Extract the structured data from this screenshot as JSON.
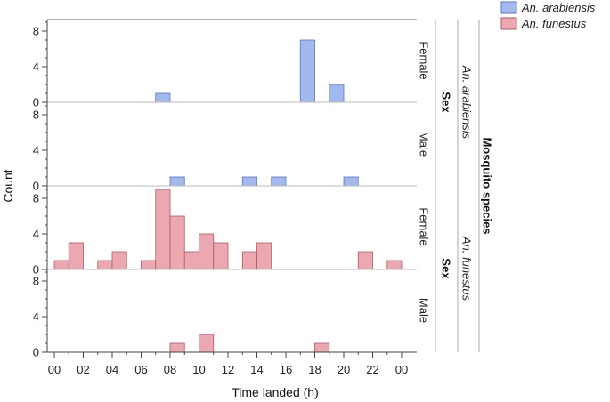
{
  "chart_data": {
    "type": "bar",
    "xlabel": "Time landed (h)",
    "ylabel": "Count",
    "x_tick_labels": [
      "00",
      "02",
      "04",
      "06",
      "08",
      "10",
      "12",
      "14",
      "16",
      "18",
      "20",
      "22",
      "00"
    ],
    "y_tick_labels": [
      "0",
      "4",
      "8"
    ],
    "ylim": [
      0,
      9.3
    ],
    "hours": [
      0,
      1,
      2,
      3,
      4,
      5,
      6,
      7,
      8,
      9,
      10,
      11,
      12,
      13,
      14,
      15,
      16,
      17,
      18,
      19,
      20,
      21,
      22,
      23
    ],
    "legend": {
      "placement": "top-right",
      "entries": [
        {
          "name": "An. arabiensis",
          "color": "#a3b8ec"
        },
        {
          "name": "An. funestus",
          "color": "#eba8b1"
        }
      ]
    },
    "facet_labels": {
      "outer_title": "Mosquito species",
      "inner_title": "Sex",
      "species": [
        "An. arabiensis",
        "An. funestus"
      ],
      "sexes": [
        "Female",
        "Male"
      ]
    },
    "series": [
      {
        "name": "An. arabiensis",
        "sex": "Female",
        "color": "#a3b8ec",
        "edge": "#5a73c9",
        "values": [
          0,
          0,
          0,
          0,
          0,
          0,
          0,
          1,
          0,
          0,
          0,
          0,
          0,
          0,
          0,
          0,
          0,
          7,
          0,
          2,
          0,
          0,
          0,
          0
        ]
      },
      {
        "name": "An. arabiensis",
        "sex": "Male",
        "color": "#a3b8ec",
        "edge": "#5a73c9",
        "values": [
          0,
          0,
          0,
          0,
          0,
          0,
          0,
          0,
          1,
          0,
          0,
          0,
          0,
          1,
          0,
          1,
          0,
          0,
          0,
          0,
          1,
          0,
          0,
          0
        ]
      },
      {
        "name": "An. funestus",
        "sex": "Female",
        "color": "#eba8b1",
        "edge": "#b25763",
        "values": [
          1,
          3,
          0,
          1,
          2,
          0,
          1,
          9,
          6,
          2,
          4,
          3,
          0,
          2,
          3,
          0,
          0,
          0,
          0,
          0,
          0,
          2,
          0,
          1
        ]
      },
      {
        "name": "An. funestus",
        "sex": "Male",
        "color": "#eba8b1",
        "edge": "#b25763",
        "values": [
          0,
          0,
          0,
          0,
          0,
          0,
          0,
          0,
          1,
          0,
          2,
          0,
          0,
          0,
          0,
          0,
          0,
          0,
          1,
          0,
          0,
          0,
          0,
          0
        ]
      }
    ]
  }
}
